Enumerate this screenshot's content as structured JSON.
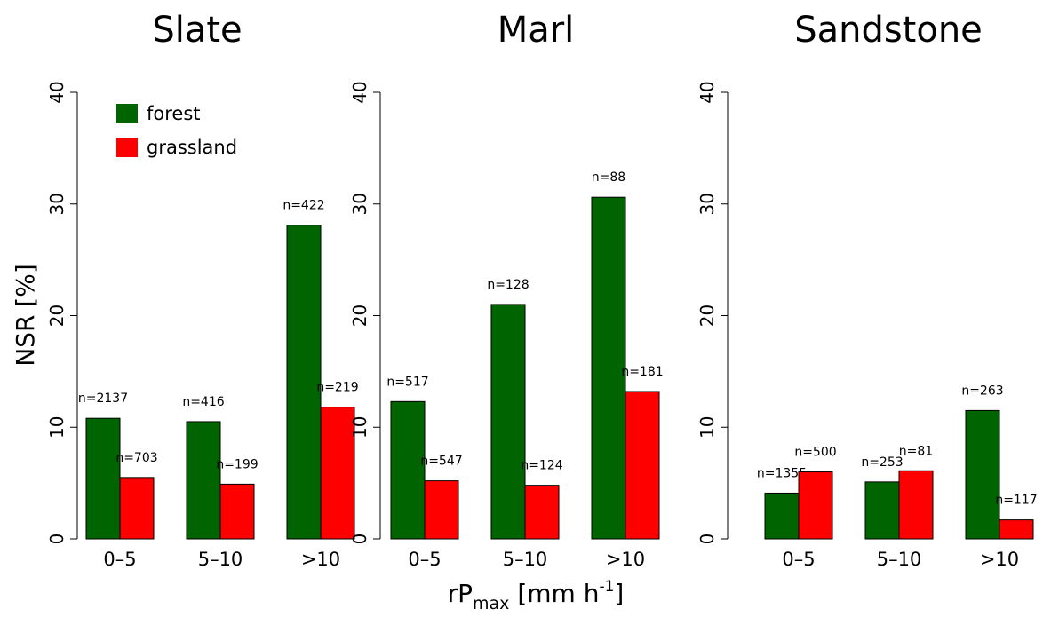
{
  "chart_data": [
    {
      "type": "bar",
      "title": "Slate",
      "y_label": "NSR [%]",
      "legend": "upper left",
      "categories": [
        "0–5",
        "5–10",
        ">10"
      ],
      "series": [
        {
          "name": "forest",
          "color": "#006400",
          "values": [
            10.8,
            10.5,
            28.1
          ],
          "labels": [
            "n=2137",
            "n=416",
            "n=422"
          ]
        },
        {
          "name": "grassland",
          "color": "#ff0000",
          "values": [
            5.5,
            4.9,
            11.8
          ],
          "labels": [
            "n=703",
            "n=199",
            "n=219"
          ]
        }
      ],
      "ylim": [
        0,
        40
      ],
      "yticks": [
        0,
        10,
        20,
        30,
        40
      ]
    },
    {
      "type": "bar",
      "title": "Marl",
      "x_label": {
        "main": "rP",
        "sub": "max",
        "unit": " [mm h",
        "sup": "-1",
        "close": "]"
      },
      "categories": [
        "0–5",
        "5–10",
        ">10"
      ],
      "series": [
        {
          "color": "#006400",
          "values": [
            12.3,
            21.0,
            30.6
          ],
          "labels": [
            "n=517",
            "n=128",
            "n=88"
          ]
        },
        {
          "color": "#ff0000",
          "values": [
            5.2,
            4.8,
            13.2
          ],
          "labels": [
            "n=547",
            "n=124",
            "n=181"
          ]
        }
      ],
      "ylim": [
        0,
        40
      ],
      "yticks": [
        0,
        10,
        20,
        30,
        40
      ]
    },
    {
      "type": "bar",
      "title": "Sandstone",
      "categories": [
        "0–5",
        "5–10",
        ">10"
      ],
      "series": [
        {
          "color": "#006400",
          "values": [
            4.1,
            5.1,
            11.5
          ],
          "labels": [
            "n=1355",
            "n=253",
            "n=263"
          ]
        },
        {
          "color": "#ff0000",
          "values": [
            6.0,
            6.1,
            1.7
          ],
          "labels": [
            "n=500",
            "n=81",
            "n=117"
          ]
        }
      ],
      "ylim": [
        0,
        40
      ],
      "yticks": [
        0,
        10,
        20,
        30,
        40
      ]
    }
  ]
}
